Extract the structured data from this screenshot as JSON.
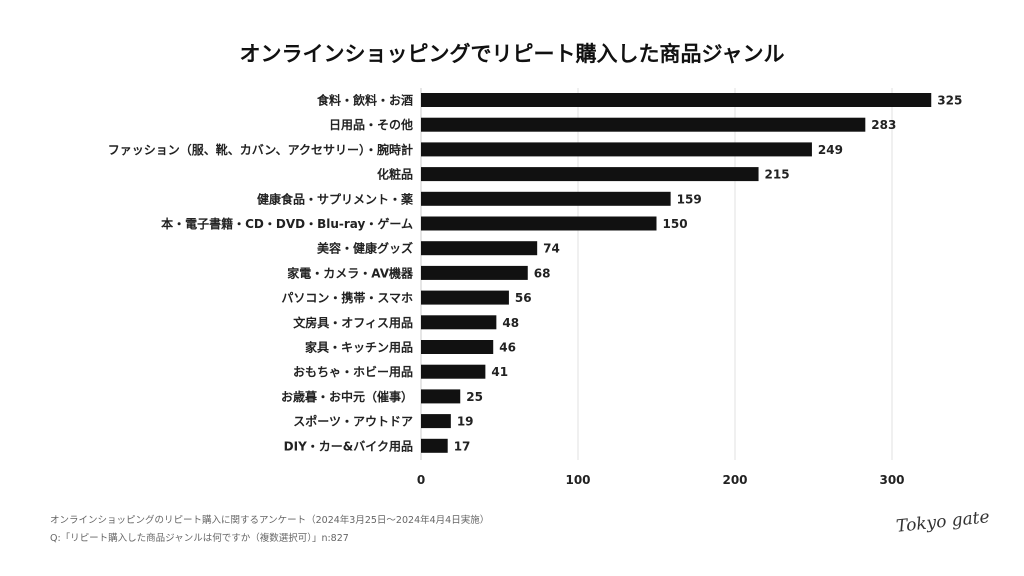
{
  "chart_data": {
    "type": "bar",
    "orientation": "horizontal",
    "title": "オンラインショッピングでリピート購入した商品ジャンル",
    "categories": [
      "食料・飲料・お酒",
      "日用品・その他",
      "ファッション（服、靴、カバン、アクセサリー）・腕時計",
      "化粧品",
      "健康食品・サプリメント・薬",
      "本・電子書籍・CD・DVD・Blu-ray・ゲーム",
      "美容・健康グッズ",
      "家電・カメラ・AV機器",
      "パソコン・携帯・スマホ",
      "文房具・オフィス用品",
      "家具・キッチン用品",
      "おもちゃ・ホビー用品",
      "お歳暮・お中元（催事）",
      "スポーツ・アウトドア",
      "DIY・カー&バイク用品"
    ],
    "values": [
      325,
      283,
      249,
      215,
      159,
      150,
      74,
      68,
      56,
      48,
      46,
      41,
      25,
      19,
      17
    ],
    "xticks": [
      0,
      100,
      200,
      300
    ],
    "xlim": [
      0,
      330
    ],
    "xlabel": "",
    "ylabel": "",
    "grid": "vertical",
    "bar_color": "#111111",
    "data_labels": true
  },
  "footer": {
    "line1": "オンラインショッピングのリピート購入に関するアンケート（2024年3月25日〜2024年4月4日実施）",
    "line2": "Q:「リピート購入した商品ジャンルは何ですか（複数選択可）」n:827"
  },
  "logo": "Tokyo gate"
}
